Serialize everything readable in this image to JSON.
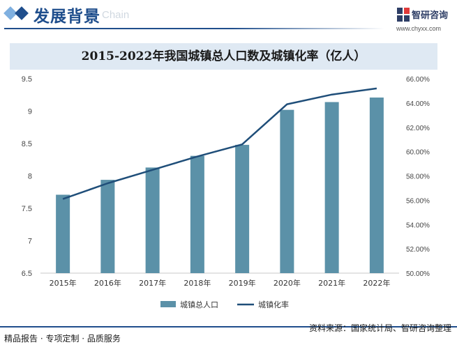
{
  "header": {
    "title": "发展背景",
    "subtitle": "Chain",
    "accent_color": "#1f4e8c",
    "logo_name": "智研咨询",
    "logo_url": "www.chyxx.com"
  },
  "footer": {
    "left": "精品报告 · 专项定制 · 品质服务",
    "source": "资料来源：国家统计局、智研咨询整理"
  },
  "chart_data": {
    "type": "bar",
    "title": "2015-2022年我国城镇总人口数及城镇化率（亿人）",
    "categories": [
      "2015年",
      "2016年",
      "2017年",
      "2018年",
      "2019年",
      "2020年",
      "2021年",
      "2022年"
    ],
    "series": [
      {
        "name": "城镇总人口",
        "type": "bar",
        "axis": "left",
        "color": "#5b91a8",
        "values": [
          7.71,
          7.94,
          8.13,
          8.31,
          8.48,
          9.02,
          9.14,
          9.21
        ]
      },
      {
        "name": "城镇化率",
        "type": "line",
        "axis": "right",
        "color": "#1f4e79",
        "values": [
          56.1,
          57.4,
          58.5,
          59.6,
          60.6,
          63.9,
          64.7,
          65.2
        ]
      }
    ],
    "y_left": {
      "min": 6.5,
      "max": 9.5,
      "ticks": [
        6.5,
        7,
        7.5,
        8,
        8.5,
        9,
        9.5
      ],
      "tick_labels": [
        "6.5",
        "7",
        "7.5",
        "8",
        "8.5",
        "9",
        "9.5"
      ]
    },
    "y_right": {
      "min": 50,
      "max": 66,
      "ticks": [
        50,
        52,
        54,
        56,
        58,
        60,
        62,
        64,
        66
      ],
      "tick_labels": [
        "50.00%",
        "52.00%",
        "54.00%",
        "56.00%",
        "58.00%",
        "60.00%",
        "62.00%",
        "64.00%",
        "66.00%"
      ]
    },
    "grid": false,
    "legend_position": "bottom-center"
  }
}
